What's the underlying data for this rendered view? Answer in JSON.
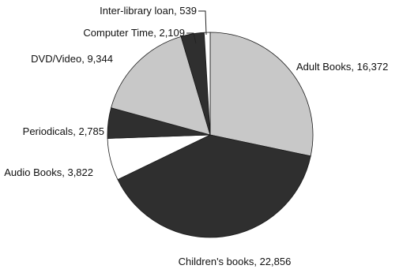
{
  "chart_data": {
    "type": "pie",
    "title": "",
    "slices": [
      {
        "label": "Adult Books",
        "value": 16372,
        "color": "#c8c8c8"
      },
      {
        "label": "Children's books",
        "value": 22856,
        "color": "#2f2f2f"
      },
      {
        "label": "Audio Books",
        "value": 3822,
        "color": "#ffffff"
      },
      {
        "label": "Periodicals",
        "value": 2785,
        "color": "#2f2f2f"
      },
      {
        "label": "DVD/Video",
        "value": 9344,
        "color": "#c8c8c8"
      },
      {
        "label": "Computer Time",
        "value": 2109,
        "color": "#2f2f2f"
      },
      {
        "label": "Inter-library loan",
        "value": 539,
        "color": "#ffffff"
      }
    ],
    "legend": "none"
  }
}
